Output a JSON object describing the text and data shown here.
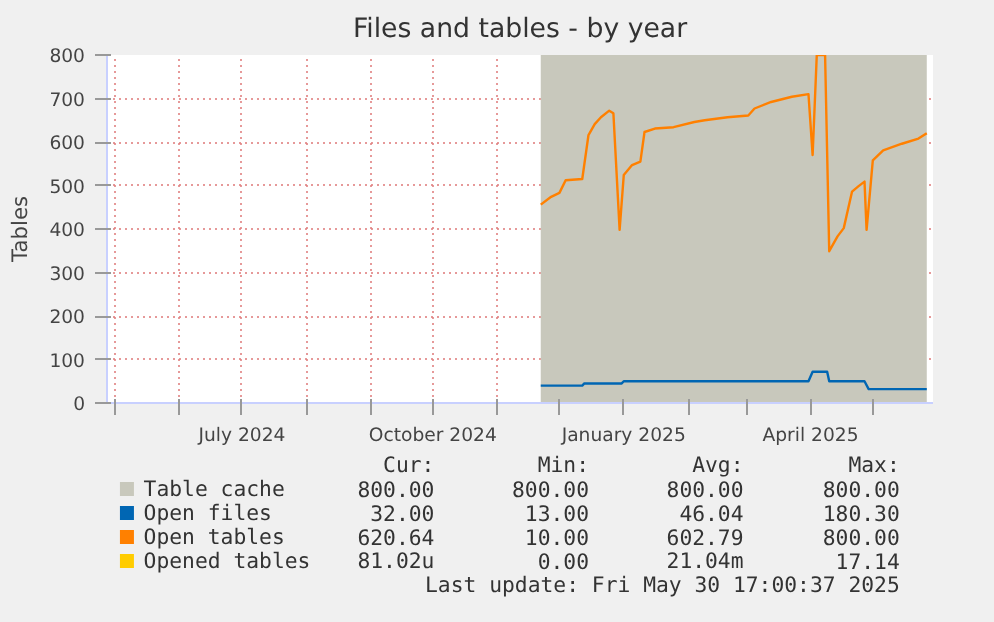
{
  "chart_data": {
    "type": "line",
    "title": "Files and tables - by year",
    "ylabel": "Tables",
    "xlim": [
      "2024-04-27",
      "2025-05-30"
    ],
    "ylim": [
      0,
      800
    ],
    "yticks": [
      0,
      100,
      200,
      300,
      400,
      500,
      600,
      700,
      800
    ],
    "xticks": [
      {
        "value": "2024-05-01",
        "label": null
      },
      {
        "value": "2024-06-01",
        "label": null
      },
      {
        "value": "2024-07-01",
        "label": "July 2024"
      },
      {
        "value": "2024-08-01",
        "label": null
      },
      {
        "value": "2024-09-01",
        "label": null
      },
      {
        "value": "2024-10-01",
        "label": "October 2024"
      },
      {
        "value": "2024-11-01",
        "label": null
      },
      {
        "value": "2024-12-01",
        "label": null
      },
      {
        "value": "2025-01-01",
        "label": "January 2025"
      },
      {
        "value": "2025-02-01",
        "label": null
      },
      {
        "value": "2025-03-01",
        "label": null
      },
      {
        "value": "2025-04-01",
        "label": "April 2025"
      },
      {
        "value": "2025-05-01",
        "label": null
      }
    ],
    "grid": true,
    "legend": "bottom",
    "series": [
      {
        "name": "Table cache",
        "type": "area",
        "color": "#c8c8bc",
        "x": [
          "2024-11-22",
          "2025-05-27"
        ],
        "values": [
          800,
          800
        ]
      },
      {
        "name": "Open files",
        "color": "#0066b3",
        "x": [
          "2024-11-22",
          "2024-12-12",
          "2024-12-13",
          "2024-12-31",
          "2025-01-01",
          "2025-03-31",
          "2025-04-02",
          "2025-04-09",
          "2025-04-10",
          "2025-04-27",
          "2025-04-29",
          "2025-05-27"
        ],
        "values": [
          40,
          40,
          45,
          45,
          50,
          50,
          72,
          72,
          50,
          50,
          32,
          32
        ]
      },
      {
        "name": "Open tables",
        "color": "#ff8000",
        "x": [
          "2024-11-22",
          "2024-11-27",
          "2024-12-01",
          "2024-12-04",
          "2024-12-12",
          "2024-12-15",
          "2024-12-18",
          "2024-12-21",
          "2024-12-25",
          "2024-12-27",
          "2024-12-30",
          "2025-01-01",
          "2025-01-05",
          "2025-01-09",
          "2025-01-11",
          "2025-01-16",
          "2025-01-25",
          "2025-02-04",
          "2025-02-09",
          "2025-02-20",
          "2025-03-02",
          "2025-03-05",
          "2025-03-13",
          "2025-03-23",
          "2025-03-31",
          "2025-04-02",
          "2025-04-04",
          "2025-04-08",
          "2025-04-10",
          "2025-04-14",
          "2025-04-17",
          "2025-04-21",
          "2025-04-24",
          "2025-04-27",
          "2025-04-28",
          "2025-05-01",
          "2025-05-06",
          "2025-05-15",
          "2025-05-23",
          "2025-05-27"
        ],
        "values": [
          456,
          474,
          483,
          512,
          515,
          616,
          641,
          657,
          672,
          666,
          398,
          524,
          547,
          555,
          623,
          631,
          634,
          646,
          650,
          657,
          661,
          677,
          692,
          704,
          710,
          570,
          800,
          800,
          349,
          383,
          402,
          486,
          498,
          509,
          398,
          558,
          581,
          596,
          608,
          620
        ]
      },
      {
        "name": "Opened tables",
        "color": "#ffcc00"
      }
    ],
    "annotations": [
      "Cur:",
      "Min:",
      "Avg:",
      "Max:",
      "800.00",
      "800.00",
      "800.00",
      "800.00",
      "32.00",
      "13.00",
      "46.04",
      "180.30",
      "620.64",
      "10.00",
      "602.79",
      "800.00",
      "81.02u",
      "0.00",
      "21.04m",
      "17.14",
      "Last update: Fri May 30 17:00:37 2025"
    ]
  }
}
